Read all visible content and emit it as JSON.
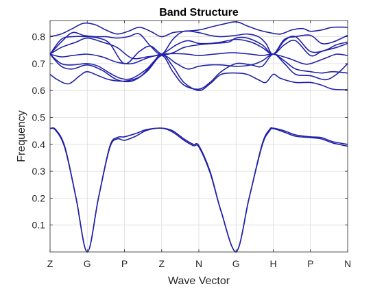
{
  "chart_data": {
    "type": "line",
    "title": "Band Structure",
    "xlabel": "Wave Vector",
    "ylabel": "Frequency",
    "x_tick_labels": [
      "Z",
      "G",
      "P",
      "Z",
      "N",
      "G",
      "H",
      "P",
      "N"
    ],
    "xlim": [
      0,
      8
    ],
    "ylim": [
      0,
      0.86
    ],
    "y_ticks": [
      0.1,
      0.2,
      0.3,
      0.4,
      0.5,
      0.6,
      0.7,
      0.8
    ],
    "grid": true,
    "line_color": "#2020a8",
    "series": [
      {
        "x": [
          0,
          0.15,
          0.4,
          0.7,
          1.0,
          1.3,
          1.6,
          1.8,
          2.0,
          2.3,
          2.6,
          3.0,
          3.3,
          3.6,
          3.85,
          4.0,
          4.3,
          4.6,
          5.0,
          5.35,
          5.7,
          5.9,
          6.0,
          6.3,
          6.6,
          7.0,
          7.3,
          7.6,
          8.0
        ],
        "y": [
          0.459,
          0.455,
          0.39,
          0.2,
          0.0,
          0.2,
          0.39,
          0.425,
          0.428,
          0.44,
          0.455,
          0.46,
          0.45,
          0.42,
          0.4,
          0.395,
          0.3,
          0.15,
          0.0,
          0.2,
          0.4,
          0.455,
          0.46,
          0.45,
          0.435,
          0.428,
          0.425,
          0.41,
          0.4
        ]
      },
      {
        "x": [
          0,
          0.15,
          0.4,
          0.7,
          1.0,
          1.3,
          1.6,
          1.8,
          2.0,
          2.3,
          2.6,
          3.0,
          3.3,
          3.6,
          3.85,
          4.0,
          4.3,
          4.6,
          5.0,
          5.35,
          5.7,
          5.9,
          6.0,
          6.3,
          6.6,
          7.0,
          7.3,
          7.6,
          8.0
        ],
        "y": [
          0.459,
          0.452,
          0.385,
          0.2,
          0.0,
          0.2,
          0.385,
          0.42,
          0.415,
          0.43,
          0.452,
          0.46,
          0.445,
          0.415,
          0.395,
          0.39,
          0.295,
          0.15,
          0.0,
          0.2,
          0.395,
          0.45,
          0.458,
          0.445,
          0.43,
          0.425,
          0.42,
          0.405,
          0.393
        ]
      },
      {
        "x": [
          0,
          0.2,
          0.5,
          0.8,
          1.0,
          1.3,
          1.6,
          2.0,
          2.4,
          2.7,
          3.0,
          3.3,
          3.6,
          4.0,
          4.3,
          4.6,
          5.0,
          5.3,
          5.6,
          5.8,
          6.0,
          6.2,
          6.6,
          7.0,
          7.3,
          7.6,
          8.0
        ],
        "y": [
          0.66,
          0.64,
          0.625,
          0.655,
          0.67,
          0.655,
          0.64,
          0.635,
          0.65,
          0.69,
          0.735,
          0.69,
          0.63,
          0.6,
          0.625,
          0.66,
          0.665,
          0.66,
          0.64,
          0.63,
          0.66,
          0.645,
          0.63,
          0.63,
          0.62,
          0.605,
          0.603
        ]
      },
      {
        "x": [
          0,
          0.3,
          0.6,
          1.0,
          1.3,
          1.6,
          1.9,
          2.2,
          2.6,
          3.0,
          3.3,
          3.6,
          4.0,
          4.3,
          4.6,
          5.0,
          5.4,
          5.7,
          6.0,
          6.3,
          6.6,
          7.0,
          7.4,
          7.7,
          8.0
        ],
        "y": [
          0.735,
          0.7,
          0.695,
          0.7,
          0.69,
          0.665,
          0.645,
          0.645,
          0.68,
          0.73,
          0.67,
          0.62,
          0.605,
          0.63,
          0.67,
          0.7,
          0.695,
          0.69,
          0.735,
          0.7,
          0.66,
          0.655,
          0.64,
          0.66,
          0.7
        ]
      },
      {
        "x": [
          0,
          0.3,
          0.6,
          1.0,
          1.4,
          1.8,
          2.2,
          2.6,
          3.0,
          3.4,
          3.7,
          4.0,
          4.3,
          4.6,
          5.0,
          5.4,
          5.7,
          6.0,
          6.3,
          6.6,
          7.0,
          7.3,
          7.6,
          8.0
        ],
        "y": [
          0.735,
          0.69,
          0.68,
          0.695,
          0.675,
          0.64,
          0.635,
          0.67,
          0.73,
          0.7,
          0.68,
          0.69,
          0.695,
          0.695,
          0.69,
          0.695,
          0.71,
          0.735,
          0.71,
          0.68,
          0.67,
          0.665,
          0.67,
          0.665
        ]
      },
      {
        "x": [
          0,
          0.3,
          0.6,
          1.0,
          1.4,
          1.8,
          2.2,
          2.6,
          3.0,
          3.4,
          3.7,
          4.0,
          4.4,
          4.8,
          5.0,
          5.4,
          5.7,
          6.0,
          6.4,
          6.8,
          7.0,
          7.4,
          7.7,
          8.0
        ],
        "y": [
          0.735,
          0.725,
          0.73,
          0.735,
          0.725,
          0.705,
          0.7,
          0.72,
          0.735,
          0.737,
          0.735,
          0.73,
          0.735,
          0.74,
          0.74,
          0.735,
          0.73,
          0.735,
          0.72,
          0.7,
          0.7,
          0.72,
          0.735,
          0.73
        ]
      },
      {
        "x": [
          0,
          0.3,
          0.7,
          1.0,
          1.4,
          1.8,
          2.2,
          2.6,
          3.0,
          3.4,
          3.7,
          4.0,
          4.3,
          4.6,
          5.0,
          5.4,
          5.7,
          6.0,
          6.3,
          6.6,
          7.0,
          7.3,
          7.7,
          8.0
        ],
        "y": [
          0.735,
          0.76,
          0.78,
          0.795,
          0.78,
          0.76,
          0.72,
          0.725,
          0.735,
          0.77,
          0.785,
          0.775,
          0.775,
          0.78,
          0.79,
          0.78,
          0.76,
          0.735,
          0.77,
          0.785,
          0.73,
          0.745,
          0.76,
          0.775
        ]
      },
      {
        "x": [
          0,
          0.3,
          0.6,
          1.0,
          1.3,
          1.6,
          2.0,
          2.4,
          2.7,
          3.0,
          3.3,
          3.6,
          4.0,
          4.4,
          4.8,
          5.0,
          5.3,
          5.7,
          6.0,
          6.3,
          6.6,
          7.0,
          7.4,
          7.7,
          8.0
        ],
        "y": [
          0.735,
          0.79,
          0.8,
          0.8,
          0.795,
          0.775,
          0.7,
          0.745,
          0.765,
          0.735,
          0.74,
          0.76,
          0.77,
          0.775,
          0.78,
          0.795,
          0.795,
          0.77,
          0.735,
          0.785,
          0.8,
          0.745,
          0.75,
          0.77,
          0.78
        ]
      },
      {
        "x": [
          0,
          0.3,
          0.6,
          0.9,
          1.2,
          1.5,
          1.8,
          2.1,
          2.4,
          2.7,
          3.0,
          3.3,
          3.6,
          4.0,
          4.3,
          4.6,
          5.0,
          5.3,
          5.6,
          5.8,
          6.0,
          6.3,
          6.6,
          7.0,
          7.3,
          7.6,
          8.0
        ],
        "y": [
          0.735,
          0.78,
          0.815,
          0.805,
          0.8,
          0.8,
          0.795,
          0.8,
          0.81,
          0.765,
          0.735,
          0.79,
          0.82,
          0.815,
          0.805,
          0.8,
          0.805,
          0.81,
          0.8,
          0.775,
          0.735,
          0.79,
          0.8,
          0.805,
          0.775,
          0.78,
          0.805
        ]
      },
      {
        "x": [
          0,
          0.3,
          0.6,
          0.9,
          1.2,
          1.5,
          1.8,
          2.1,
          2.4,
          2.7,
          3.0,
          3.3,
          3.6,
          4.0,
          4.3,
          4.6,
          5.0,
          5.3,
          5.6,
          5.9,
          6.2,
          6.5,
          6.8,
          7.0,
          7.3,
          7.6,
          8.0
        ],
        "y": [
          0.8,
          0.81,
          0.83,
          0.85,
          0.845,
          0.825,
          0.81,
          0.82,
          0.835,
          0.82,
          0.8,
          0.815,
          0.82,
          0.825,
          0.835,
          0.845,
          0.855,
          0.84,
          0.825,
          0.815,
          0.81,
          0.825,
          0.83,
          0.82,
          0.825,
          0.835,
          0.835
        ]
      }
    ]
  }
}
